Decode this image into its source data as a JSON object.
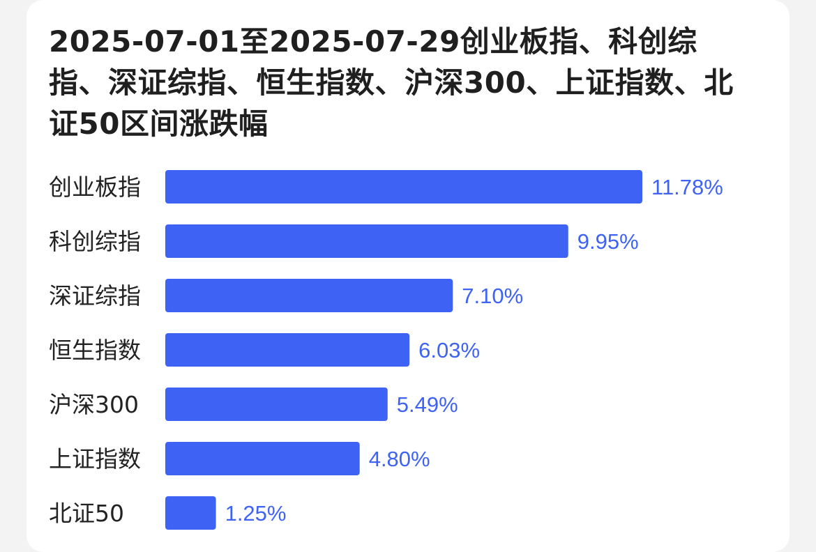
{
  "chart_data": {
    "type": "bar",
    "orientation": "horizontal",
    "title": "2025-07-01至2025-07-29创业板指、科创综指、深证综指、恒生指数、沪深300、上证指数、北证50区间涨跌幅",
    "xlabel": "",
    "ylabel": "",
    "categories": [
      "创业板指",
      "科创综指",
      "深证综指",
      "恒生指数",
      "沪深300",
      "上证指数",
      "北证50"
    ],
    "values": [
      11.78,
      9.95,
      7.1,
      6.03,
      5.49,
      4.8,
      1.25
    ],
    "value_labels": [
      "11.78%",
      "9.95%",
      "7.10%",
      "6.03%",
      "5.49%",
      "4.80%",
      "1.25%"
    ],
    "unit": "%",
    "xlim": [
      0,
      11.78
    ],
    "grid": false,
    "colors": {
      "bar": "#3e63f4",
      "value_label": "#3e63f4",
      "category_label": "#222222",
      "title": "#1f1f1f"
    }
  }
}
